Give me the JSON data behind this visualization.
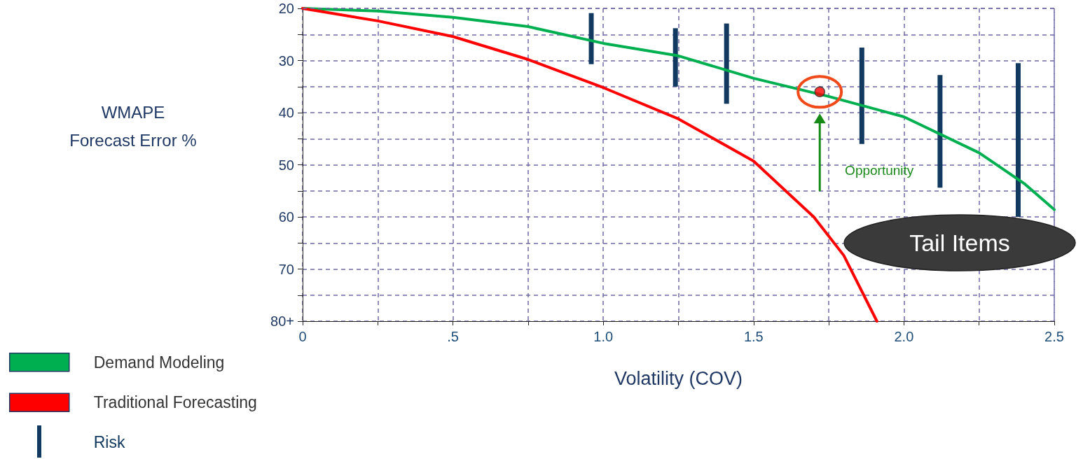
{
  "chart_data": {
    "type": "line",
    "xlabel": "Volatility (COV)",
    "ylabel": "WMAPE\nForecast Error %",
    "xlim": [
      0,
      2.5
    ],
    "xticks": [
      0,
      {
        "value": 0.25,
        "label": null
      },
      {
        "value": 0.5,
        "label": ".5"
      },
      {
        "value": 0.75,
        "label": null
      },
      {
        "value": 1,
        "label": "1.0"
      },
      {
        "value": 1.25,
        "label": null
      },
      {
        "value": 1.5,
        "label": "1.5"
      },
      {
        "value": 1.75,
        "label": null
      },
      {
        "value": 2,
        "label": "2.0"
      },
      {
        "value": 2.25,
        "label": null
      },
      {
        "value": 2.5,
        "label": "2.5"
      }
    ],
    "ylim": [
      80,
      20
    ],
    "yticks": [
      20,
      {
        "value": 25,
        "label": null
      },
      30,
      {
        "value": 35,
        "label": null
      },
      40,
      {
        "value": 45,
        "label": null
      },
      50,
      {
        "value": 55,
        "label": null
      },
      60,
      {
        "value": 65,
        "label": null
      },
      70,
      {
        "value": 75,
        "label": null
      },
      {
        "value": 80,
        "label": "80+"
      }
    ],
    "grid": true,
    "legend": "bottom left",
    "marker": "none",
    "series": [
      {
        "name": "Demand Modeling",
        "color": "#00b050",
        "x": [
          0,
          0.25,
          0.5,
          0.75,
          1.0,
          1.25,
          1.5,
          1.75,
          2.0,
          2.25,
          2.4,
          2.5
        ],
        "values": [
          20,
          20.5,
          21.7,
          23.5,
          26.7,
          29.1,
          33.4,
          36.9,
          40.8,
          47.7,
          53.6,
          58.6
        ]
      },
      {
        "name": "Traditional Forecasting",
        "color": "#ff0000",
        "x": [
          0,
          0.25,
          0.5,
          0.75,
          1.0,
          1.25,
          1.5,
          1.7,
          1.8,
          1.91
        ],
        "values": [
          20,
          22.4,
          25.4,
          29.8,
          35.2,
          41.2,
          49.3,
          60,
          67.4,
          80
        ]
      },
      {
        "name": "Risk",
        "type": "bar",
        "color": "#123a60",
        "x": [
          0.96,
          1.24,
          1.41,
          1.86,
          2.12,
          2.38
        ],
        "base": [
          20.9,
          23.8,
          22.9,
          27.5,
          32.8,
          30.5
        ],
        "values": [
          9.8,
          11.2,
          15.4,
          18.5,
          21.6,
          29.5
        ]
      },
      {
        "type": "scatter",
        "color": "#ff0000",
        "marker": "circle",
        "x": [
          1.72
        ],
        "values": [
          36
        ]
      }
    ],
    "annotations": [
      "Opportunity",
      "Tail Items"
    ]
  }
}
